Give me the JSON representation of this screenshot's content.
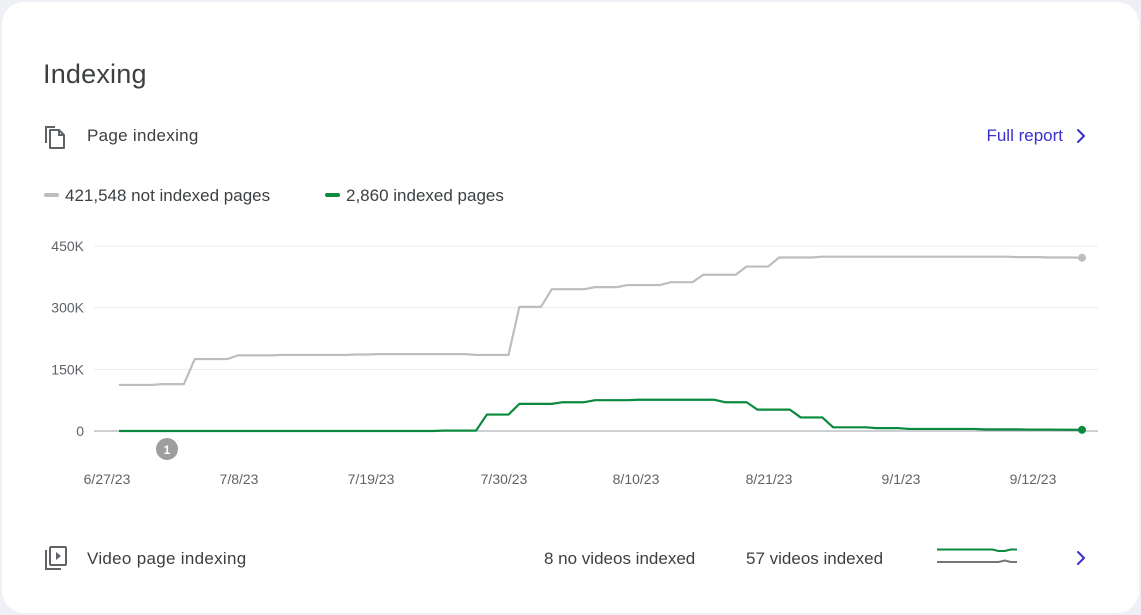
{
  "card": {
    "title": "Indexing"
  },
  "page_indexing": {
    "label": "Page indexing",
    "icon": "file-copy-icon",
    "full_report_label": "Full report",
    "legend": [
      {
        "label": "421,548 not indexed pages",
        "color": "#bdbdbd"
      },
      {
        "label": "2,860 indexed pages",
        "color": "#0a8a3e"
      }
    ],
    "annotation_marker": "1"
  },
  "chart_data": {
    "type": "line",
    "y_tick_labels": [
      "450K",
      "300K",
      "150K",
      "0"
    ],
    "x_tick_labels": [
      "6/27/23",
      "7/8/23",
      "7/19/23",
      "7/30/23",
      "8/10/23",
      "8/21/23",
      "9/1/23",
      "9/12/23"
    ],
    "ylim": [
      0,
      450000
    ],
    "grid": true,
    "legend_position": "top-left",
    "series": [
      {
        "name": "421,548 not indexed pages",
        "color": "#bdbdbd",
        "values": [
          112000,
          112000,
          112000,
          112000,
          114000,
          114000,
          114000,
          175000,
          175000,
          175000,
          175000,
          184000,
          184000,
          184000,
          184000,
          185000,
          185000,
          185000,
          185000,
          185000,
          185000,
          185000,
          186000,
          186000,
          187000,
          187000,
          187000,
          187000,
          187000,
          187000,
          187000,
          187000,
          187000,
          185000,
          185000,
          185000,
          185000,
          302000,
          302000,
          302000,
          345000,
          345000,
          345000,
          345000,
          350000,
          350000,
          350000,
          355000,
          355000,
          355000,
          355000,
          362000,
          362000,
          362000,
          380000,
          380000,
          380000,
          380000,
          400000,
          400000,
          400000,
          422000,
          422000,
          422000,
          422000,
          424000,
          424000,
          424000,
          424000,
          424000,
          424000,
          424000,
          424000,
          424000,
          424000,
          424000,
          424000,
          424000,
          424000,
          424000,
          424000,
          424000,
          424000,
          423000,
          423000,
          423000,
          422000,
          422000,
          422000,
          421548
        ]
      },
      {
        "name": "2,860 indexed pages",
        "color": "#0a8a3e",
        "values": [
          0,
          0,
          0,
          0,
          0,
          0,
          0,
          0,
          0,
          0,
          0,
          0,
          0,
          0,
          0,
          0,
          0,
          0,
          0,
          0,
          0,
          0,
          0,
          0,
          0,
          0,
          0,
          0,
          0,
          0,
          1000,
          1000,
          1000,
          1000,
          40000,
          40000,
          40000,
          66000,
          66000,
          66000,
          66000,
          70000,
          70000,
          70000,
          75000,
          75000,
          75000,
          75000,
          76000,
          76000,
          76000,
          76000,
          76000,
          76000,
          76000,
          76000,
          70000,
          70000,
          70000,
          52000,
          52000,
          52000,
          52000,
          33000,
          33000,
          33000,
          9000,
          9000,
          9000,
          9000,
          7000,
          7000,
          7000,
          5000,
          5000,
          5000,
          5000,
          5000,
          5000,
          5000,
          4000,
          4000,
          4000,
          4000,
          3500,
          3500,
          3500,
          3200,
          3000,
          2860
        ]
      }
    ]
  },
  "video_indexing": {
    "label": "Video page indexing",
    "icon": "video-library-icon",
    "stat_not_indexed": "8 no videos indexed",
    "stat_indexed": "57 videos indexed",
    "sparkline": {
      "indexed_color": "#0a8a3e",
      "not_indexed_color": "#757575",
      "indexed_values": [
        57,
        57,
        57,
        57,
        57,
        57,
        57,
        57,
        57,
        57,
        56,
        56,
        57,
        57
      ],
      "not_indexed_values": [
        8,
        8,
        8,
        8,
        8,
        8,
        8,
        8,
        8,
        8,
        8,
        9,
        8,
        8
      ]
    }
  }
}
